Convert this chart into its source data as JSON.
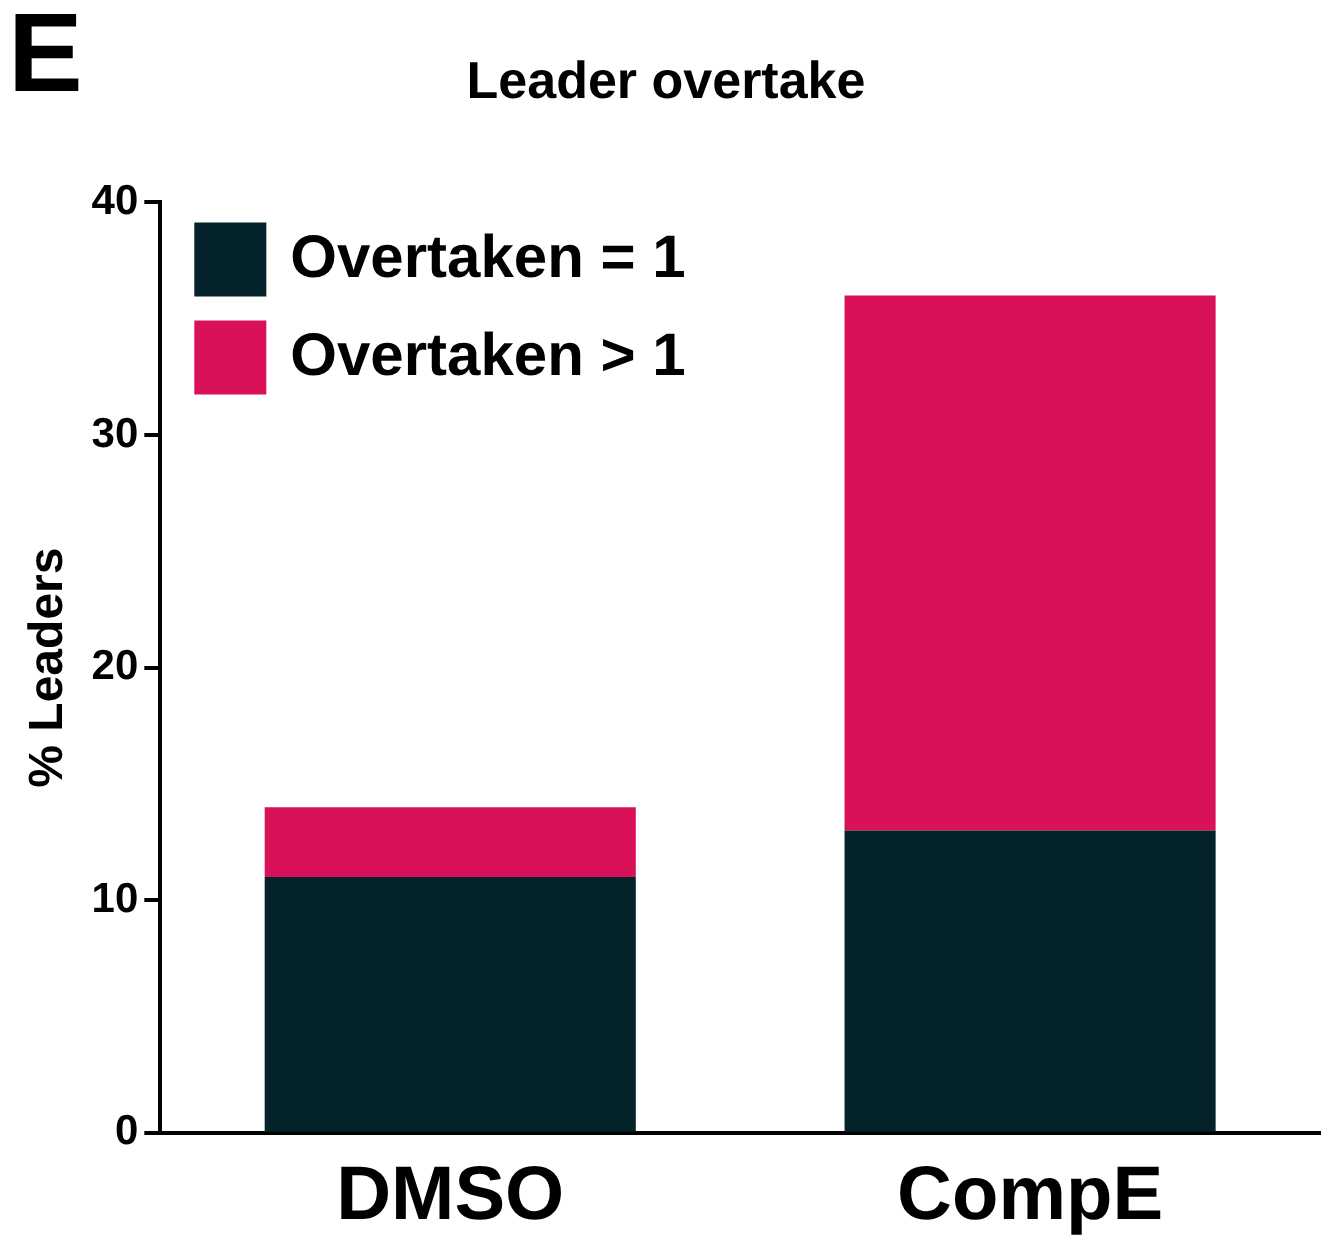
{
  "chart_data": {
    "type": "bar",
    "title": "Leader overtake",
    "ylabel": "% Leaders",
    "annotations": [
      "E"
    ],
    "categories": [
      "DMSO",
      "CompE"
    ],
    "stacked": true,
    "series": [
      {
        "name": "Overtaken = 1",
        "color": "#03222a",
        "values": [
          11,
          13
        ]
      },
      {
        "name": "Overtaken > 1",
        "color": "#d81159",
        "values": [
          3,
          23
        ]
      }
    ],
    "ylim": [
      0,
      40
    ],
    "yticks": [
      0,
      10,
      20,
      30,
      40
    ],
    "grid": false,
    "legend": "top left"
  }
}
